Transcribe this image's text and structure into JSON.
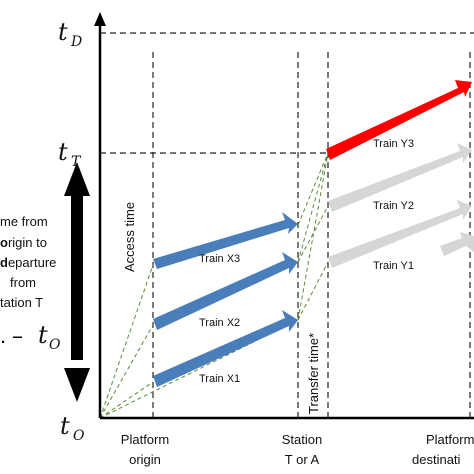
{
  "time_axis": {
    "origin": {
      "main": "t",
      "sub": "O"
    },
    "transfer": {
      "main": "t",
      "sub": "T"
    },
    "destination": {
      "main": "t",
      "sub": "D"
    }
  },
  "locations": {
    "platform_origin": [
      "Platform",
      "origin"
    ],
    "station": [
      "Station",
      "T or A"
    ],
    "platform_destination": [
      "Platform",
      "destinati"
    ]
  },
  "annotations": {
    "access_time": "Access time",
    "transfer_time": "Transfer time*"
  },
  "side_text": {
    "lines": [
      "me from",
      "rigin to",
      "eparture",
      "from",
      "tation T"
    ],
    "bold_prefix_line2": "o",
    "bold_prefix_line3": "d",
    "formula_minus": "–",
    "formula_t": "t",
    "formula_sub": "O",
    "formula_dot": "."
  },
  "trains": {
    "x1": "Train X1",
    "x2": "Train X2",
    "x3": "Train X3",
    "y1": "Train Y1",
    "y2": "Train Y2",
    "y3": "Train Y3"
  },
  "colors": {
    "train_x": "#4a7ebb",
    "train_y_grey": "#d6d6d6",
    "train_y3": "#ff0000",
    "dashed_green": "#5a8a3a"
  }
}
